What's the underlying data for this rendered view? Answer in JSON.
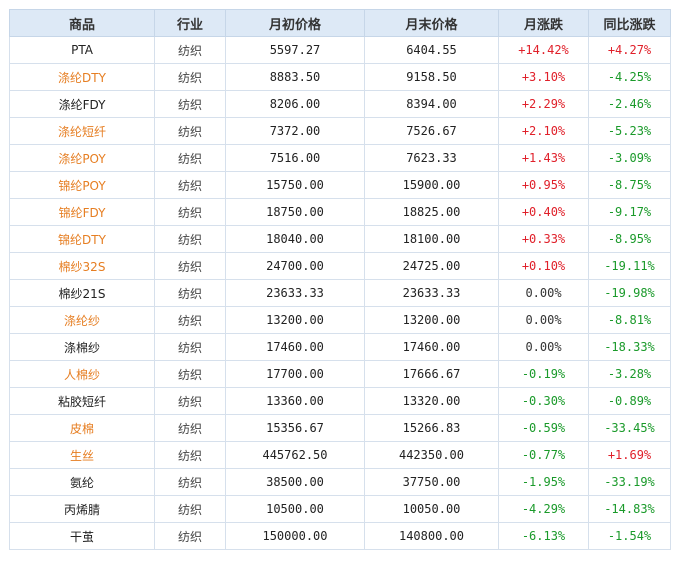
{
  "table": {
    "headers": [
      "商品",
      "行业",
      "月初价格",
      "月末价格",
      "月涨跌",
      "同比涨跌"
    ],
    "rows": [
      {
        "name": "PTA",
        "orange": false,
        "industry": "纺织",
        "start": "5597.27",
        "end": "6404.55",
        "monthly": "+14.42%",
        "monthly_dir": "up",
        "yoy": "+4.27%",
        "yoy_dir": "up"
      },
      {
        "name": "涤纶DTY",
        "orange": true,
        "industry": "纺织",
        "start": "8883.50",
        "end": "9158.50",
        "monthly": "+3.10%",
        "monthly_dir": "up",
        "yoy": "-4.25%",
        "yoy_dir": "down"
      },
      {
        "name": "涤纶FDY",
        "orange": false,
        "industry": "纺织",
        "start": "8206.00",
        "end": "8394.00",
        "monthly": "+2.29%",
        "monthly_dir": "up",
        "yoy": "-2.46%",
        "yoy_dir": "down"
      },
      {
        "name": "涤纶短纤",
        "orange": true,
        "industry": "纺织",
        "start": "7372.00",
        "end": "7526.67",
        "monthly": "+2.10%",
        "monthly_dir": "up",
        "yoy": "-5.23%",
        "yoy_dir": "down"
      },
      {
        "name": "涤纶POY",
        "orange": true,
        "industry": "纺织",
        "start": "7516.00",
        "end": "7623.33",
        "monthly": "+1.43%",
        "monthly_dir": "up",
        "yoy": "-3.09%",
        "yoy_dir": "down"
      },
      {
        "name": "锦纶POY",
        "orange": true,
        "industry": "纺织",
        "start": "15750.00",
        "end": "15900.00",
        "monthly": "+0.95%",
        "monthly_dir": "up",
        "yoy": "-8.75%",
        "yoy_dir": "down"
      },
      {
        "name": "锦纶FDY",
        "orange": true,
        "industry": "纺织",
        "start": "18750.00",
        "end": "18825.00",
        "monthly": "+0.40%",
        "monthly_dir": "up",
        "yoy": "-9.17%",
        "yoy_dir": "down"
      },
      {
        "name": "锦纶DTY",
        "orange": true,
        "industry": "纺织",
        "start": "18040.00",
        "end": "18100.00",
        "monthly": "+0.33%",
        "monthly_dir": "up",
        "yoy": "-8.95%",
        "yoy_dir": "down"
      },
      {
        "name": "棉纱32S",
        "orange": true,
        "industry": "纺织",
        "start": "24700.00",
        "end": "24725.00",
        "monthly": "+0.10%",
        "monthly_dir": "up",
        "yoy": "-19.11%",
        "yoy_dir": "down"
      },
      {
        "name": "棉纱21S",
        "orange": false,
        "industry": "纺织",
        "start": "23633.33",
        "end": "23633.33",
        "monthly": "0.00%",
        "monthly_dir": "flat",
        "yoy": "-19.98%",
        "yoy_dir": "down"
      },
      {
        "name": "涤纶纱",
        "orange": true,
        "industry": "纺织",
        "start": "13200.00",
        "end": "13200.00",
        "monthly": "0.00%",
        "monthly_dir": "flat",
        "yoy": "-8.81%",
        "yoy_dir": "down"
      },
      {
        "name": "涤棉纱",
        "orange": false,
        "industry": "纺织",
        "start": "17460.00",
        "end": "17460.00",
        "monthly": "0.00%",
        "monthly_dir": "flat",
        "yoy": "-18.33%",
        "yoy_dir": "down"
      },
      {
        "name": "人棉纱",
        "orange": true,
        "industry": "纺织",
        "start": "17700.00",
        "end": "17666.67",
        "monthly": "-0.19%",
        "monthly_dir": "down",
        "yoy": "-3.28%",
        "yoy_dir": "down"
      },
      {
        "name": "粘胶短纤",
        "orange": false,
        "industry": "纺织",
        "start": "13360.00",
        "end": "13320.00",
        "monthly": "-0.30%",
        "monthly_dir": "down",
        "yoy": "-0.89%",
        "yoy_dir": "down"
      },
      {
        "name": "皮棉",
        "orange": true,
        "industry": "纺织",
        "start": "15356.67",
        "end": "15266.83",
        "monthly": "-0.59%",
        "monthly_dir": "down",
        "yoy": "-33.45%",
        "yoy_dir": "down"
      },
      {
        "name": "生丝",
        "orange": true,
        "industry": "纺织",
        "start": "445762.50",
        "end": "442350.00",
        "monthly": "-0.77%",
        "monthly_dir": "down",
        "yoy": "+1.69%",
        "yoy_dir": "up"
      },
      {
        "name": "氨纶",
        "orange": false,
        "industry": "纺织",
        "start": "38500.00",
        "end": "37750.00",
        "monthly": "-1.95%",
        "monthly_dir": "down",
        "yoy": "-33.19%",
        "yoy_dir": "down"
      },
      {
        "name": "丙烯腈",
        "orange": false,
        "industry": "纺织",
        "start": "10500.00",
        "end": "10050.00",
        "monthly": "-4.29%",
        "monthly_dir": "down",
        "yoy": "-14.83%",
        "yoy_dir": "down"
      },
      {
        "name": "干茧",
        "orange": false,
        "industry": "纺织",
        "start": "150000.00",
        "end": "140800.00",
        "monthly": "-6.13%",
        "monthly_dir": "down",
        "yoy": "-1.54%",
        "yoy_dir": "down"
      }
    ]
  }
}
